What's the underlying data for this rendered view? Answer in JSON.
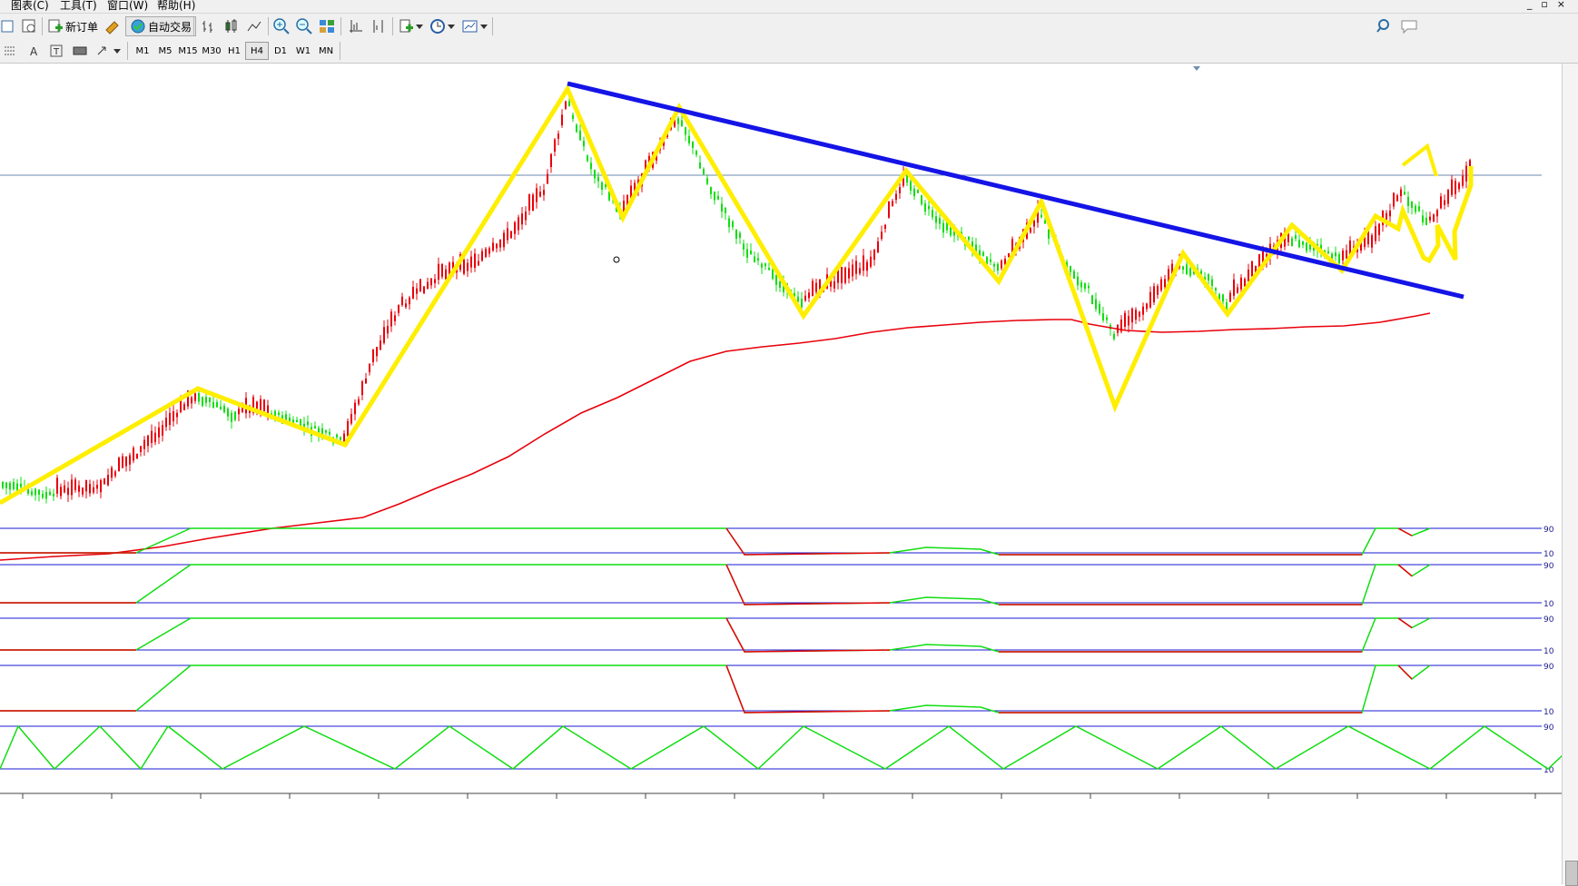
{
  "menu": {
    "items": [
      "图表(C)",
      "工具(T)",
      "窗口(W)",
      "帮助(H)"
    ]
  },
  "window_controls": [
    "_",
    "▫",
    "×"
  ],
  "toolbar": {
    "new_order_label": "新订单",
    "auto_trade_label": "自动交易"
  },
  "timeframes": [
    "M1",
    "M5",
    "M15",
    "M30",
    "H1",
    "H4",
    "D1",
    "W1",
    "MN"
  ],
  "active_timeframe": "H4",
  "osc_levels": [
    {
      "upper": "90",
      "lower": "10"
    },
    {
      "upper": "90",
      "lower": "10"
    },
    {
      "upper": "90",
      "lower": "10"
    },
    {
      "upper": "90",
      "lower": "10"
    },
    {
      "upper": "90",
      "lower": "10"
    }
  ],
  "colors": {
    "zigzag": "#ffee00",
    "trendline": "#1414e6",
    "moving_average": "#e8000b",
    "bull_candle": "#e8000b",
    "bear_candle": "#11dd11",
    "level_line": "#1a1ad6"
  },
  "icons": [
    "search-icon",
    "chat-icon",
    "new-order-icon",
    "auto-trade-icon",
    "zoom-in-icon",
    "zoom-out-icon",
    "grid-icon",
    "clock-icon"
  ]
}
